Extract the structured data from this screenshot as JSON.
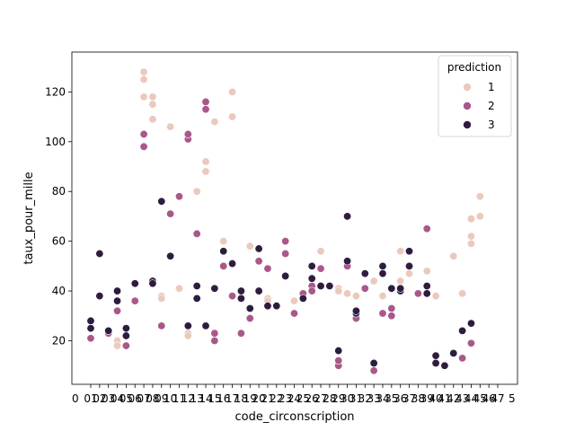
{
  "chart_data": {
    "type": "scatter",
    "title": "",
    "xlabel": "code_circonscription",
    "ylabel": "taux_pour_mille",
    "ylim": [
      2.5,
      136
    ],
    "yticks": [
      20,
      40,
      60,
      80,
      100,
      120
    ],
    "x_tick_text": "01 02 03 04 05 06 07 08 09 10 11 12 13 14 15 16 17 18 19 20 21 22 23 24 25 26 27 28 29 30 31 32 33 34 35 36 37 38 39 40 41 42 43 44 45 46 47 48 49 50 51 52 53 54 55 56 57 58 59 60 61 62 63 64 65 66 67 68 69 70 71 72 73 74 75 76 77 78 79 80 81 82 83 84 85 86 87 88 89 90 91 92 93 94 95 96 97 98 99 00 01 02 03 04 05",
    "x_tick_display_left": "0",
    "x_tick_display_right": "5",
    "grid": false,
    "legend": {
      "title": "prediction",
      "placement": "top-right",
      "entries": [
        "1",
        "2",
        "3"
      ]
    },
    "colors": {
      "1": "#ebc9bd",
      "2": "#a9588a",
      "3": "#2e1c3f"
    },
    "n_categories": 47,
    "series": [
      {
        "name": "1",
        "points": [
          [
            3,
            20
          ],
          [
            3,
            18
          ],
          [
            6,
            128
          ],
          [
            6,
            125
          ],
          [
            6,
            118
          ],
          [
            7,
            118
          ],
          [
            7,
            115
          ],
          [
            7,
            109
          ],
          [
            8,
            38
          ],
          [
            8,
            37
          ],
          [
            9,
            106
          ],
          [
            10,
            41
          ],
          [
            11,
            23
          ],
          [
            11,
            22
          ],
          [
            12,
            80
          ],
          [
            13,
            92
          ],
          [
            13,
            88
          ],
          [
            14,
            108
          ],
          [
            15,
            60
          ],
          [
            16,
            120
          ],
          [
            16,
            110
          ],
          [
            18,
            58
          ],
          [
            20,
            37
          ],
          [
            20,
            36
          ],
          [
            23,
            36
          ],
          [
            26,
            56
          ],
          [
            28,
            41
          ],
          [
            28,
            40
          ],
          [
            29,
            39
          ],
          [
            30,
            38
          ],
          [
            32,
            44
          ],
          [
            33,
            38
          ],
          [
            35,
            44
          ],
          [
            35,
            56
          ],
          [
            36,
            47
          ],
          [
            38,
            48
          ],
          [
            39,
            38
          ],
          [
            41,
            54
          ],
          [
            42,
            39
          ],
          [
            43,
            69
          ],
          [
            43,
            62
          ],
          [
            43,
            59
          ],
          [
            44,
            78
          ],
          [
            44,
            70
          ]
        ]
      },
      {
        "name": "2",
        "points": [
          [
            0,
            21
          ],
          [
            2,
            23
          ],
          [
            3,
            32
          ],
          [
            4,
            18
          ],
          [
            5,
            36
          ],
          [
            6,
            103
          ],
          [
            6,
            98
          ],
          [
            8,
            26
          ],
          [
            9,
            71
          ],
          [
            10,
            78
          ],
          [
            11,
            101
          ],
          [
            11,
            103
          ],
          [
            12,
            63
          ],
          [
            13,
            116
          ],
          [
            13,
            113
          ],
          [
            14,
            20
          ],
          [
            14,
            23
          ],
          [
            15,
            50
          ],
          [
            16,
            38
          ],
          [
            17,
            23
          ],
          [
            18,
            29
          ],
          [
            19,
            52
          ],
          [
            20,
            49
          ],
          [
            22,
            55
          ],
          [
            22,
            60
          ],
          [
            23,
            31
          ],
          [
            24,
            39
          ],
          [
            25,
            42
          ],
          [
            25,
            40
          ],
          [
            26,
            49
          ],
          [
            28,
            10
          ],
          [
            28,
            12
          ],
          [
            29,
            50
          ],
          [
            30,
            29
          ],
          [
            31,
            41
          ],
          [
            32,
            8
          ],
          [
            33,
            31
          ],
          [
            34,
            33
          ],
          [
            34,
            30
          ],
          [
            37,
            39
          ],
          [
            38,
            65
          ],
          [
            38,
            65
          ],
          [
            42,
            13
          ],
          [
            43,
            19
          ]
        ]
      },
      {
        "name": "3",
        "points": [
          [
            0,
            28
          ],
          [
            0,
            25
          ],
          [
            1,
            55
          ],
          [
            1,
            38
          ],
          [
            2,
            24
          ],
          [
            3,
            40
          ],
          [
            3,
            36
          ],
          [
            4,
            25
          ],
          [
            4,
            22
          ],
          [
            5,
            43
          ],
          [
            7,
            44
          ],
          [
            7,
            43
          ],
          [
            8,
            76
          ],
          [
            9,
            54
          ],
          [
            11,
            26
          ],
          [
            12,
            42
          ],
          [
            12,
            37
          ],
          [
            13,
            26
          ],
          [
            14,
            41
          ],
          [
            15,
            56
          ],
          [
            16,
            51
          ],
          [
            17,
            37
          ],
          [
            17,
            40
          ],
          [
            18,
            33
          ],
          [
            19,
            40
          ],
          [
            19,
            57
          ],
          [
            20,
            34
          ],
          [
            21,
            34
          ],
          [
            22,
            46
          ],
          [
            24,
            37
          ],
          [
            25,
            50
          ],
          [
            25,
            45
          ],
          [
            26,
            42
          ],
          [
            27,
            42
          ],
          [
            28,
            16
          ],
          [
            29,
            70
          ],
          [
            29,
            52
          ],
          [
            30,
            31
          ],
          [
            30,
            32
          ],
          [
            31,
            47
          ],
          [
            32,
            11
          ],
          [
            33,
            50
          ],
          [
            33,
            47
          ],
          [
            34,
            41
          ],
          [
            35,
            40
          ],
          [
            35,
            41
          ],
          [
            36,
            56
          ],
          [
            36,
            50
          ],
          [
            38,
            42
          ],
          [
            38,
            39
          ],
          [
            39,
            11
          ],
          [
            39,
            14
          ],
          [
            40,
            10
          ],
          [
            41,
            15
          ],
          [
            42,
            24
          ],
          [
            43,
            27
          ]
        ]
      }
    ]
  }
}
